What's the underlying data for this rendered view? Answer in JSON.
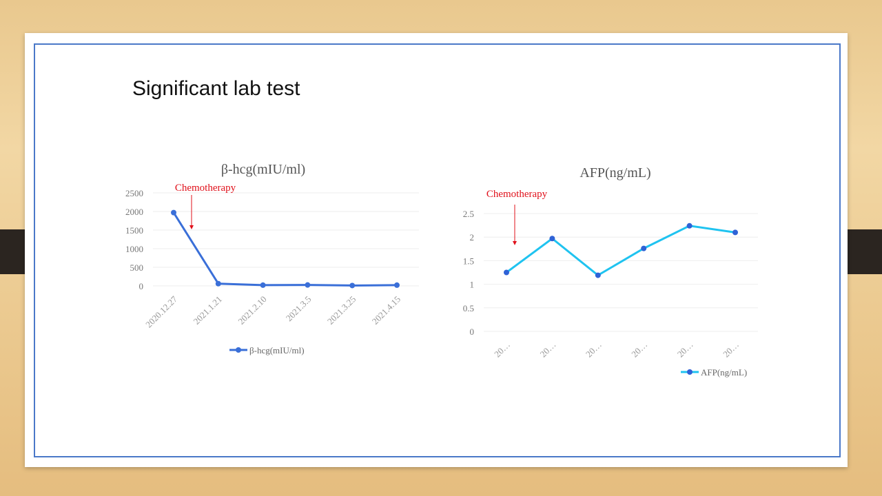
{
  "slide": {
    "title": "Significant lab test"
  },
  "chart_data": [
    {
      "type": "line",
      "title": "β-hcg(mIU/ml)",
      "annotation": "Chemotherapy",
      "categories": [
        "2020.12.27",
        "2021.1.21",
        "2021.2.10",
        "2021.3.5",
        "2021.3.25",
        "2021.4.15"
      ],
      "series": [
        {
          "name": "β-hcg(mIU/ml)",
          "values": [
            1970,
            60,
            20,
            25,
            10,
            20
          ],
          "color": "#3a6fd8"
        }
      ],
      "yticks": [
        "0",
        "500",
        "1000",
        "1500",
        "2000",
        "2500"
      ],
      "ylim": [
        0,
        2500
      ],
      "grid": true,
      "legend": "bottom"
    },
    {
      "type": "line",
      "title": "AFP(ng/mL)",
      "annotation": "Chemotherapy",
      "categories": [
        "20…",
        "20…",
        "20…",
        "20…",
        "20…",
        "20…"
      ],
      "series": [
        {
          "name": "AFP(ng/mL)",
          "values": [
            1.25,
            1.97,
            1.19,
            1.76,
            2.24,
            2.1
          ],
          "color": "#1fc3f0",
          "marker": "#2f62d6"
        }
      ],
      "yticks": [
        "0",
        "0.5",
        "1",
        "1.5",
        "2",
        "2.5"
      ],
      "ylim": [
        0,
        2.5
      ],
      "grid": true,
      "legend": "bottom-right"
    }
  ]
}
